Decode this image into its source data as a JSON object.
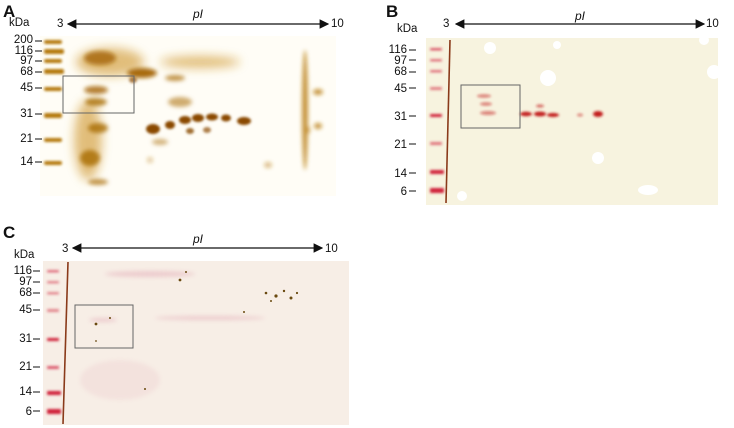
{
  "panels": [
    {
      "letter": "A",
      "kda_label": "kDa",
      "axis_left": "3",
      "axis_right": "10",
      "axis_label": "pI",
      "markers": [
        "200",
        "116",
        "97",
        "68",
        "45",
        "31",
        "21",
        "14"
      ]
    },
    {
      "letter": "B",
      "kda_label": "kDa",
      "axis_left": "3",
      "axis_right": "10",
      "axis_label": "pI",
      "markers": [
        "116",
        "97",
        "68",
        "45",
        "31",
        "21",
        "14",
        "6"
      ]
    },
    {
      "letter": "C",
      "kda_label": "kDa",
      "axis_left": "3",
      "axis_right": "10",
      "axis_label": "pI",
      "markers": [
        "116",
        "97",
        "68",
        "45",
        "31",
        "21",
        "14",
        "6"
      ]
    }
  ],
  "colors": {
    "silver_stain": "#b8860b",
    "western_red": "#d0203a",
    "gel_b_bg": "#f7f3df",
    "gel_c_bg": "#f6ece4"
  }
}
